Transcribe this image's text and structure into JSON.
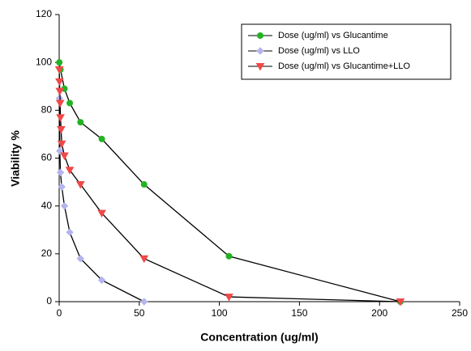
{
  "chart_data": {
    "type": "line",
    "xlabel": "Concentration (ug/ml)",
    "ylabel": "Viability %",
    "xlim": [
      0,
      250
    ],
    "xticks": [
      0,
      50,
      100,
      150,
      200,
      250
    ],
    "ylim": [
      0,
      120
    ],
    "yticks": [
      0,
      20,
      40,
      60,
      80,
      100,
      120
    ],
    "legend": "upper right",
    "line_color": "#000000",
    "series": [
      {
        "name": "Dose (ug/ml) vs Glucantime",
        "color": "#22b322",
        "marker": "circle",
        "x": [
          0.1,
          0.8,
          3.3,
          6.6,
          13.3,
          26.6,
          53,
          106,
          213
        ],
        "values": [
          100,
          97,
          89,
          83,
          75,
          68,
          49,
          19,
          0
        ]
      },
      {
        "name": "Dose (ug/ml) vs LLO",
        "color": "#b4b4ee",
        "marker": "diamond",
        "x": [
          0.2,
          0.4,
          0.8,
          1.6,
          3.3,
          6.6,
          13.3,
          26.6,
          53
        ],
        "values": [
          85,
          63,
          54,
          48,
          40,
          29,
          18,
          9,
          0
        ]
      },
      {
        "name": "Dose (ug/ml) vs Glucantime+LLO",
        "color": "#f04848",
        "marker": "triangle-down",
        "x": [
          0.1,
          0.2,
          0.4,
          0.6,
          0.8,
          1.2,
          1.6,
          3.3,
          6.6,
          13.3,
          26.6,
          53,
          106,
          213
        ],
        "values": [
          97,
          92,
          88,
          83,
          77,
          72,
          66,
          61,
          55,
          49,
          37,
          18,
          2,
          0
        ]
      }
    ]
  }
}
